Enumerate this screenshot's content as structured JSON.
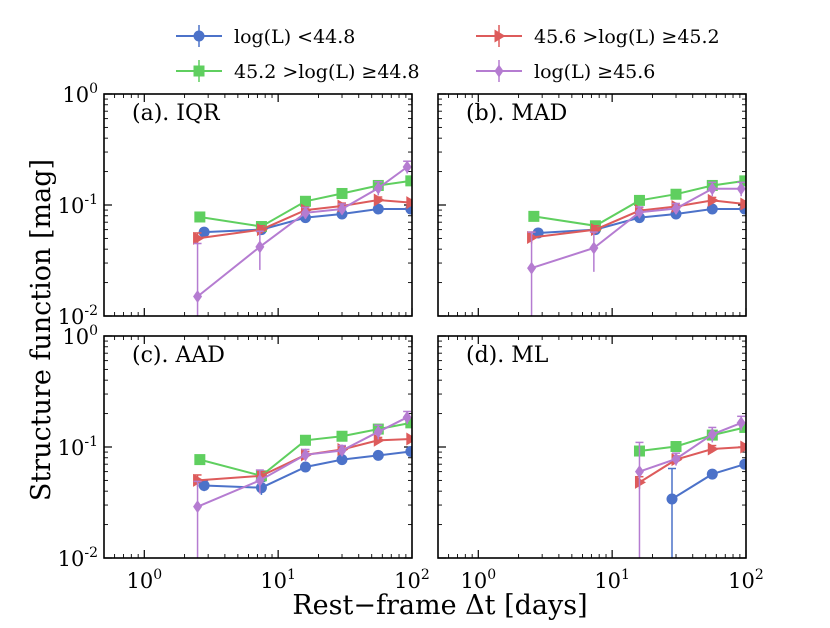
{
  "chart_data": {
    "type": "line",
    "scale": "log-log",
    "xlabel": "Rest−frame Δt [days]",
    "ylabel": "Structure function [mag]",
    "xlim": [
      0.5,
      100
    ],
    "ylim": [
      0.01,
      1
    ],
    "x_tick_labels": [
      {
        "base": "10",
        "exp": "0",
        "value": 1
      },
      {
        "base": "10",
        "exp": "1",
        "value": 10
      },
      {
        "base": "10",
        "exp": "2",
        "value": 100
      }
    ],
    "y_tick_labels": [
      {
        "base": "10",
        "exp": "0",
        "value": 1
      },
      {
        "base": "10",
        "exp": "-1",
        "value": 0.1
      },
      {
        "base": "10",
        "exp": "-2",
        "value": 0.01
      }
    ],
    "legend": [
      {
        "series": "s1",
        "label": "log(L) <44.8",
        "color": "#4c72c9",
        "marker": "circle"
      },
      {
        "series": "s3",
        "label": "45.6 >log(L) ≥45.2",
        "color": "#dd5b5b",
        "marker": "triangle-right"
      },
      {
        "series": "s2",
        "label": "45.2 >log(L) ≥44.8",
        "color": "#5fcf5f",
        "marker": "square"
      },
      {
        "series": "s4",
        "label": "log(L) ≥45.6",
        "color": "#b57cd1",
        "marker": "diamond"
      }
    ],
    "series_styles": {
      "s1": {
        "color": "#4c72c9",
        "marker": "circle"
      },
      "s2": {
        "color": "#5fcf5f",
        "marker": "square"
      },
      "s3": {
        "color": "#dd5b5b",
        "marker": "triangle-right"
      },
      "s4": {
        "color": "#b57cd1",
        "marker": "diamond"
      }
    },
    "panels": [
      {
        "label": "(a). IQR",
        "series": [
          {
            "key": "s1",
            "x": [
              2.8,
              7.5,
              16,
              30,
              56,
              98
            ],
            "y": [
              0.057,
              0.06,
              0.077,
              0.083,
              0.092,
              0.092
            ],
            "err": [
              0.004,
              0.004,
              0.004,
              0.004,
              0.004,
              0.004
            ]
          },
          {
            "key": "s2",
            "x": [
              2.6,
              7.5,
              16,
              30,
              56,
              98
            ],
            "y": [
              0.078,
              0.064,
              0.108,
              0.127,
              0.15,
              0.165
            ],
            "err": [
              0.005,
              0.005,
              0.006,
              0.007,
              0.008,
              0.009
            ]
          },
          {
            "key": "s3",
            "x": [
              2.5,
              7.5,
              16,
              30,
              56,
              98
            ],
            "y": [
              0.05,
              0.06,
              0.09,
              0.098,
              0.111,
              0.105
            ],
            "err": [
              0.006,
              0.005,
              0.006,
              0.006,
              0.007,
              0.007
            ]
          },
          {
            "key": "s4",
            "x": [
              2.5,
              7.3,
              16,
              30,
              56,
              92
            ],
            "y": [
              0.015,
              0.042,
              0.085,
              0.092,
              0.142,
              0.22
            ],
            "err": [
              0.03,
              0.016,
              0.01,
              0.01,
              0.02,
              0.028
            ]
          }
        ]
      },
      {
        "label": "(b). MAD",
        "series": [
          {
            "key": "s1",
            "x": [
              2.8,
              7.5,
              16,
              30,
              56,
              98
            ],
            "y": [
              0.056,
              0.06,
              0.077,
              0.083,
              0.092,
              0.092
            ],
            "err": [
              0.004,
              0.004,
              0.004,
              0.004,
              0.004,
              0.004
            ]
          },
          {
            "key": "s2",
            "x": [
              2.6,
              7.5,
              16,
              30,
              56,
              98
            ],
            "y": [
              0.079,
              0.065,
              0.11,
              0.125,
              0.15,
              0.165
            ],
            "err": [
              0.005,
              0.005,
              0.006,
              0.007,
              0.008,
              0.009
            ]
          },
          {
            "key": "s3",
            "x": [
              2.5,
              7.5,
              16,
              30,
              56,
              98
            ],
            "y": [
              0.051,
              0.06,
              0.089,
              0.097,
              0.11,
              0.102
            ],
            "err": [
              0.006,
              0.005,
              0.006,
              0.006,
              0.007,
              0.007
            ]
          },
          {
            "key": "s4",
            "x": [
              2.5,
              7.3,
              16,
              30,
              56,
              92
            ],
            "y": [
              0.027,
              0.041,
              0.086,
              0.093,
              0.14,
              0.14
            ],
            "err": [
              0.03,
              0.016,
              0.01,
              0.01,
              0.02,
              0.02
            ]
          }
        ]
      },
      {
        "label": "(c). AAD",
        "series": [
          {
            "key": "s1",
            "x": [
              2.8,
              7.5,
              16,
              30,
              56,
              98
            ],
            "y": [
              0.045,
              0.043,
              0.066,
              0.077,
              0.084,
              0.091
            ],
            "err": [
              0.005,
              0.006,
              0.004,
              0.004,
              0.004,
              0.004
            ]
          },
          {
            "key": "s2",
            "x": [
              2.6,
              7.5,
              16,
              30,
              56,
              98
            ],
            "y": [
              0.077,
              0.055,
              0.115,
              0.125,
              0.145,
              0.165
            ],
            "err": [
              0.005,
              0.005,
              0.006,
              0.007,
              0.008,
              0.009
            ]
          },
          {
            "key": "s3",
            "x": [
              2.5,
              7.5,
              16,
              30,
              56,
              98
            ],
            "y": [
              0.05,
              0.055,
              0.085,
              0.095,
              0.115,
              0.118
            ],
            "err": [
              0.006,
              0.005,
              0.006,
              0.006,
              0.007,
              0.007
            ]
          },
          {
            "key": "s4",
            "x": [
              2.5,
              7.3,
              16,
              30,
              56,
              92
            ],
            "y": [
              0.029,
              0.05,
              0.085,
              0.093,
              0.137,
              0.185
            ],
            "err": [
              0.02,
              0.012,
              0.01,
              0.01,
              0.02,
              0.024
            ]
          }
        ]
      },
      {
        "label": "(d). ML",
        "series": [
          {
            "key": "s1",
            "x": [
              28,
              56,
              98
            ],
            "y": [
              0.034,
              0.057,
              0.07
            ],
            "err": [
              0.03,
              0.004,
              0.004
            ]
          },
          {
            "key": "s2",
            "x": [
              16,
              30,
              56,
              98
            ],
            "y": [
              0.092,
              0.101,
              0.128,
              0.15
            ],
            "err": [
              0.006,
              0.007,
              0.008,
              0.009
            ]
          },
          {
            "key": "s3",
            "x": [
              16,
              30,
              56,
              98
            ],
            "y": [
              0.048,
              0.077,
              0.096,
              0.1
            ],
            "err": [
              0.006,
              0.006,
              0.007,
              0.007
            ]
          },
          {
            "key": "s4",
            "x": [
              16,
              30,
              56,
              92
            ],
            "y": [
              0.06,
              0.078,
              0.13,
              0.165
            ],
            "err": [
              0.05,
              0.01,
              0.02,
              0.024
            ]
          }
        ]
      }
    ]
  }
}
